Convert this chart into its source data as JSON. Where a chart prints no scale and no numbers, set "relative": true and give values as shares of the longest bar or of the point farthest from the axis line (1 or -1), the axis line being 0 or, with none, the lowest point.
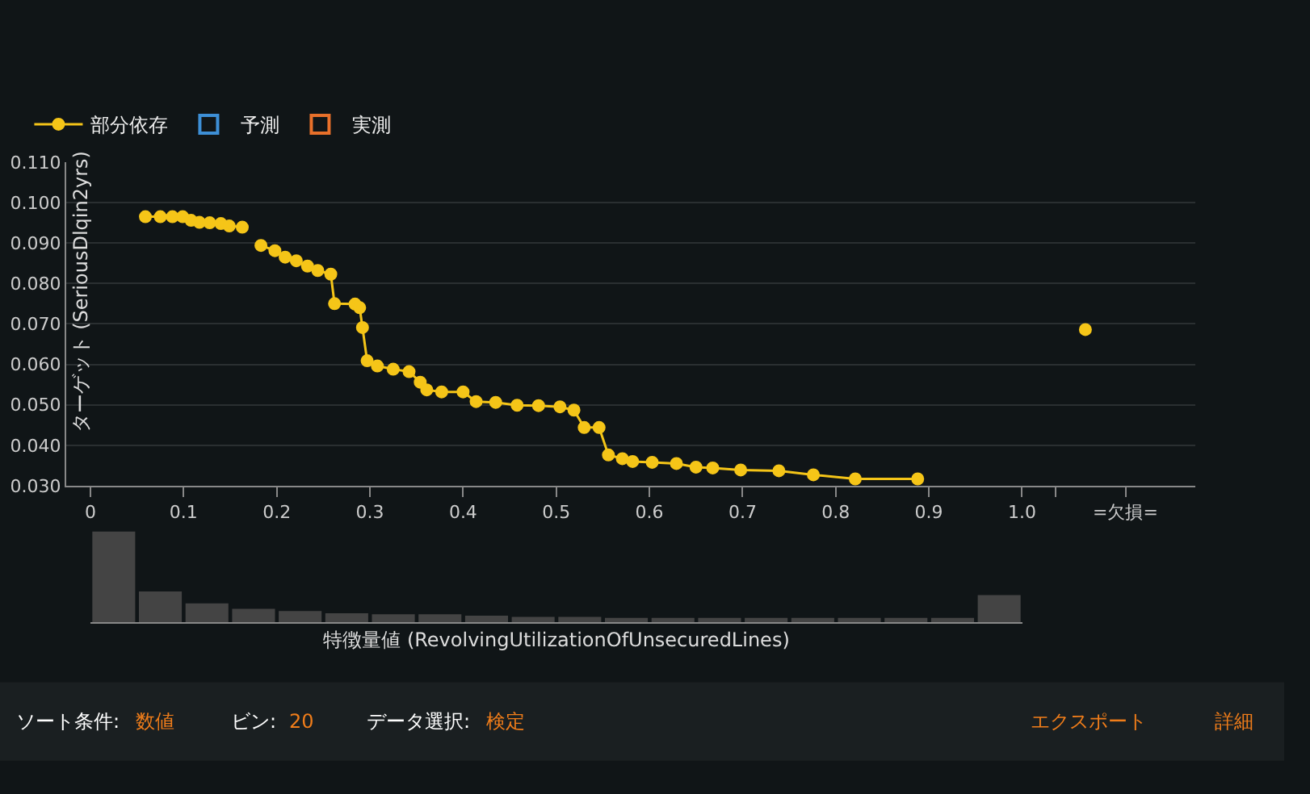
{
  "chart_data": [
    {
      "type": "line",
      "ylabel": "ターゲット (SeriousDlqin2yrs)",
      "xlim": [
        -0.026,
        1.186
      ],
      "ylim": [
        0.03,
        0.11
      ],
      "xticks": [
        0,
        0.1,
        0.2,
        0.3,
        0.4,
        0.5,
        0.6,
        0.7,
        0.8,
        0.9,
        {
          "value": 1.0,
          "label": "1.0"
        },
        {
          "value": 1.036,
          "label": null
        },
        {
          "value": 1.111,
          "label": "=欠損="
        }
      ],
      "yticks": [
        {
          "value": 0.03,
          "label": "0.030"
        },
        {
          "value": 0.04,
          "label": "0.040"
        },
        {
          "value": 0.05,
          "label": "0.050"
        },
        {
          "value": 0.06,
          "label": "0.060"
        },
        {
          "value": 0.07,
          "label": "0.070"
        },
        {
          "value": 0.08,
          "label": "0.080"
        },
        {
          "value": 0.09,
          "label": "0.090"
        },
        {
          "value": 0.1,
          "label": "0.100"
        },
        {
          "value": 0.11,
          "label": "0.110"
        }
      ],
      "grid": "y",
      "legend": "top left",
      "marker": "circle",
      "line_style": "solid",
      "series": [
        {
          "name": "部分依存",
          "color": "#f5c518",
          "x": [
            0.059,
            0.075,
            0.088,
            0.099,
            0.108,
            0.117,
            0.128,
            0.14,
            0.149,
            0.163,
            0.173,
            0.183,
            0.198,
            0.209,
            0.221,
            0.233,
            0.244,
            0.258,
            0.262,
            0.284,
            0.289,
            0.292,
            0.297,
            0.308,
            0.325,
            0.342,
            0.354,
            0.361,
            0.377,
            0.4,
            0.414,
            0.435,
            0.458,
            0.481,
            0.504,
            0.519,
            0.53,
            0.546,
            0.556,
            0.571,
            0.582,
            0.603,
            0.629,
            0.65,
            0.668,
            0.698,
            0.739,
            0.776,
            0.821,
            0.888,
            0.95,
            1.068
          ],
          "values": [
            0.0965,
            0.0965,
            0.0965,
            0.0965,
            0.0956,
            0.0951,
            0.095,
            0.0948,
            0.0942,
            0.0939,
            null,
            0.0894,
            0.0881,
            0.0865,
            0.0856,
            0.0843,
            0.0832,
            0.0823,
            0.075,
            0.0749,
            0.074,
            0.0691,
            0.0609,
            0.0596,
            0.0588,
            0.0582,
            0.0556,
            0.0537,
            0.0532,
            0.0532,
            0.0508,
            0.0506,
            0.0499,
            0.0498,
            0.0495,
            0.0487,
            0.0444,
            0.0444,
            0.0376,
            0.0367,
            0.036,
            0.0358,
            0.0355,
            0.0346,
            0.0344,
            0.0339,
            0.0337,
            0.0327,
            0.0317,
            0.0317,
            null,
            0.0686
          ]
        },
        {
          "name": "予測",
          "color": "#3d8fd6",
          "marker": "square"
        },
        {
          "name": "実測",
          "color": "#e8702a",
          "marker": "square"
        }
      ]
    },
    {
      "type": "bar",
      "xlabel": "特徴量値 (RevolvingUtilizationOfUnsecuredLines)",
      "relative": true,
      "tick_labels": false,
      "color": "#444444",
      "categories": [
        null,
        null,
        null,
        null,
        null,
        null,
        null,
        null,
        null,
        null,
        null,
        null,
        null,
        null,
        null,
        null,
        null,
        null,
        null,
        null
      ],
      "values": [
        1,
        0.34,
        0.21,
        0.15,
        0.125,
        0.1,
        0.09,
        0.09,
        0.075,
        0.06,
        0.06,
        0.05,
        0.05,
        0.05,
        0.05,
        0.05,
        0.05,
        0.05,
        0.05,
        0.3
      ]
    },
    {
      "type": "other",
      "annotations": [
        "ソート条件:",
        "数値",
        "ビン:",
        "20",
        "データ選択:",
        "検定",
        "エクスポート",
        "詳細"
      ],
      "colors": [
        "#ffffff",
        "#f07d1a",
        "#ffffff",
        "#f07d1a",
        "#ffffff",
        "#f07d1a",
        "#f07d1a",
        "#f07d1a"
      ]
    }
  ]
}
